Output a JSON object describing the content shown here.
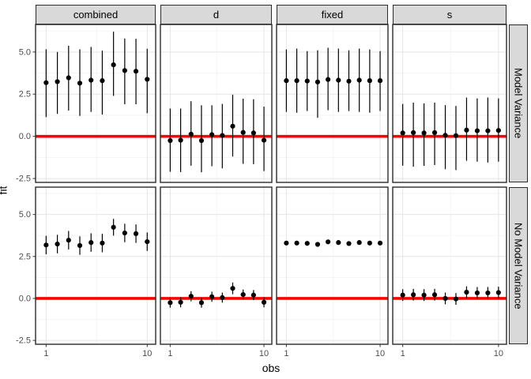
{
  "axis": {
    "xlabel": "obs",
    "ylabel": "fit"
  },
  "colors": {
    "background": "#ffffff",
    "strip_fill": "#d9d9d9",
    "strip_border": "#2b2b2b",
    "panel_border": "#2b2b2b",
    "grid_major": "#e5e5e5",
    "grid_minor": "#f2f2f2",
    "ref_line": "#ff0000",
    "point": "#000000",
    "tick_mark": "#333333",
    "tick_label": "#4d4d4d"
  },
  "chart_data": {
    "type": "scatter",
    "subtype": "faceted-pointrange",
    "title": "",
    "xlabel": "obs",
    "ylabel": "fit",
    "x": [
      1,
      2,
      3,
      4,
      5,
      6,
      7,
      8,
      9,
      10
    ],
    "x_ticks": {
      "values": [
        1,
        10
      ],
      "labels": [
        "1",
        "10"
      ]
    },
    "y_ticks": {
      "values": [
        5.0,
        2.5,
        0.0,
        -2.5
      ],
      "labels": [
        "5.0",
        "2.5",
        "0.0",
        "-2.5"
      ]
    },
    "ylim": [
      -2.73,
      6.63
    ],
    "grid": {
      "major_x": [
        1,
        10
      ],
      "minor_x": [
        5.5
      ],
      "major_y": [
        -2.5,
        0,
        2.5,
        5.0
      ],
      "minor_y": [
        -1.25,
        1.25,
        3.75,
        6.25
      ]
    },
    "ref_line": {
      "y": 0
    },
    "legend": "none",
    "col_facets": [
      "combined",
      "d",
      "fixed",
      "s"
    ],
    "row_facets": [
      "Model Variance",
      "No Model Variance"
    ],
    "panels": [
      {
        "row": "Model Variance",
        "col": "combined",
        "y": [
          3.18,
          3.24,
          3.47,
          3.15,
          3.33,
          3.3,
          4.24,
          3.9,
          3.86,
          3.38
        ],
        "ymin": [
          1.14,
          1.33,
          1.53,
          1.21,
          1.45,
          1.29,
          2.4,
          1.9,
          1.9,
          1.37
        ],
        "ymax": [
          5.16,
          5.0,
          5.37,
          5.16,
          5.3,
          5.08,
          6.2,
          5.8,
          5.78,
          5.19
        ]
      },
      {
        "row": "Model Variance",
        "col": "d",
        "y": [
          -0.25,
          -0.23,
          0.13,
          -0.25,
          0.1,
          0.05,
          0.6,
          0.23,
          0.2,
          -0.23
        ],
        "ymin": [
          -2.1,
          -2.12,
          -1.74,
          -2.13,
          -1.77,
          -1.9,
          -1.2,
          -1.63,
          -1.65,
          -2.06
        ],
        "ymax": [
          1.65,
          1.65,
          2.08,
          1.84,
          1.84,
          1.92,
          2.47,
          2.23,
          2.2,
          1.76
        ]
      },
      {
        "row": "Model Variance",
        "col": "fixed",
        "y": [
          3.3,
          3.3,
          3.28,
          3.22,
          3.37,
          3.33,
          3.27,
          3.33,
          3.3,
          3.3
        ],
        "ymin": [
          1.45,
          1.4,
          1.5,
          1.1,
          1.55,
          1.45,
          1.5,
          1.45,
          1.4,
          1.5
        ],
        "ymax": [
          5.15,
          5.2,
          5.05,
          5.1,
          5.25,
          5.2,
          5.1,
          5.2,
          5.15,
          5.05
        ]
      },
      {
        "row": "Model Variance",
        "col": "s",
        "y": [
          0.2,
          0.22,
          0.2,
          0.22,
          0.06,
          0.04,
          0.37,
          0.33,
          0.33,
          0.35
        ],
        "ymin": [
          -1.74,
          -1.8,
          -1.75,
          -1.7,
          -1.95,
          -2.0,
          -1.45,
          -1.5,
          -1.55,
          -1.5
        ],
        "ymax": [
          1.92,
          2.0,
          1.95,
          2.0,
          1.85,
          1.8,
          2.3,
          2.25,
          2.3,
          2.25
        ]
      },
      {
        "row": "No Model Variance",
        "col": "combined",
        "y": [
          3.18,
          3.24,
          3.47,
          3.15,
          3.33,
          3.3,
          4.24,
          3.9,
          3.86,
          3.38
        ],
        "ymin": [
          2.63,
          2.69,
          2.92,
          2.6,
          2.78,
          2.75,
          3.74,
          3.35,
          3.31,
          2.83
        ],
        "ymax": [
          3.73,
          3.79,
          4.02,
          3.7,
          3.88,
          3.85,
          4.74,
          4.45,
          4.41,
          3.93
        ]
      },
      {
        "row": "No Model Variance",
        "col": "d",
        "y": [
          -0.25,
          -0.23,
          0.13,
          -0.25,
          0.1,
          0.05,
          0.6,
          0.23,
          0.2,
          -0.23
        ],
        "ymin": [
          -0.55,
          -0.53,
          -0.17,
          -0.55,
          -0.2,
          -0.25,
          0.25,
          -0.07,
          -0.1,
          -0.53
        ],
        "ymax": [
          0.05,
          0.07,
          0.43,
          0.05,
          0.4,
          0.35,
          0.95,
          0.53,
          0.5,
          0.07
        ]
      },
      {
        "row": "No Model Variance",
        "col": "fixed",
        "y": [
          3.3,
          3.3,
          3.28,
          3.22,
          3.37,
          3.33,
          3.27,
          3.33,
          3.3,
          3.3
        ],
        "ymin": [
          3.23,
          3.23,
          3.21,
          3.15,
          3.3,
          3.26,
          3.2,
          3.26,
          3.23,
          3.23
        ],
        "ymax": [
          3.37,
          3.37,
          3.35,
          3.29,
          3.44,
          3.4,
          3.34,
          3.4,
          3.37,
          3.37
        ]
      },
      {
        "row": "No Model Variance",
        "col": "s",
        "y": [
          0.2,
          0.22,
          0.2,
          0.22,
          0.0,
          -0.03,
          0.37,
          0.33,
          0.33,
          0.35
        ],
        "ymin": [
          -0.15,
          -0.13,
          -0.15,
          -0.13,
          -0.35,
          -0.38,
          0.02,
          -0.02,
          -0.02,
          0.0
        ],
        "ymax": [
          0.55,
          0.57,
          0.55,
          0.57,
          0.35,
          0.32,
          0.72,
          0.68,
          0.68,
          0.7
        ]
      }
    ]
  }
}
